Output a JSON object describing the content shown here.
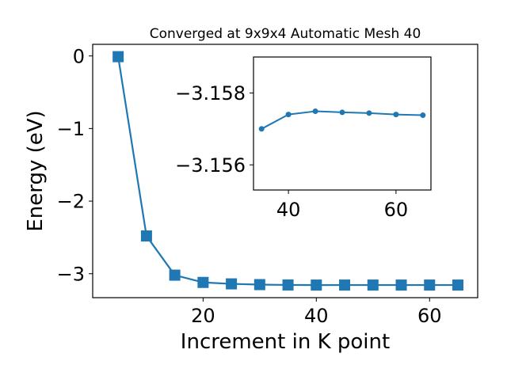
{
  "chart_data": [
    {
      "type": "line",
      "title": "Converged at 9x9x4 Automatic Mesh 40",
      "xlabel": "Increment in K point",
      "ylabel": "Energy (eV)",
      "xlim": [
        0.5,
        68.5
      ],
      "ylim": [
        -3.33,
        0.16
      ],
      "x_ticks": [
        20,
        40,
        60
      ],
      "x_tick_labels": [
        "20",
        "40",
        "60"
      ],
      "y_ticks": [
        0,
        -1,
        -2,
        -3
      ],
      "y_tick_labels": [
        "0",
        "−1",
        "−2",
        "−3"
      ],
      "marker": "square",
      "color": "#1f77b4",
      "series": [
        {
          "x": [
            5,
            10,
            15,
            20,
            25,
            30,
            35,
            40,
            45,
            50,
            55,
            60,
            65
          ],
          "y": [
            -0.01,
            -2.48,
            -3.02,
            -3.12,
            -3.14,
            -3.15,
            -3.155,
            -3.1565,
            -3.1563,
            -3.1563,
            -3.1564,
            -3.1564,
            -3.1564
          ]
        }
      ]
    },
    {
      "type": "line",
      "title": "",
      "xlabel": "",
      "ylabel": "",
      "xlim": [
        33.5,
        66.5
      ],
      "ylim": [
        -3.1553,
        -3.159
      ],
      "x_ticks": [
        40,
        60
      ],
      "x_tick_labels": [
        "40",
        "60"
      ],
      "y_ticks": [
        -3.158,
        -3.156
      ],
      "y_tick_labels": [
        "−3.158",
        "−3.156"
      ],
      "marker": "circle",
      "color": "#1f77b4",
      "series": [
        {
          "x": [
            35,
            40,
            45,
            50,
            55,
            60,
            65
          ],
          "y": [
            -3.157,
            -3.1574,
            -3.15749,
            -3.15746,
            -3.15744,
            -3.1574,
            -3.15738
          ]
        }
      ]
    }
  ]
}
